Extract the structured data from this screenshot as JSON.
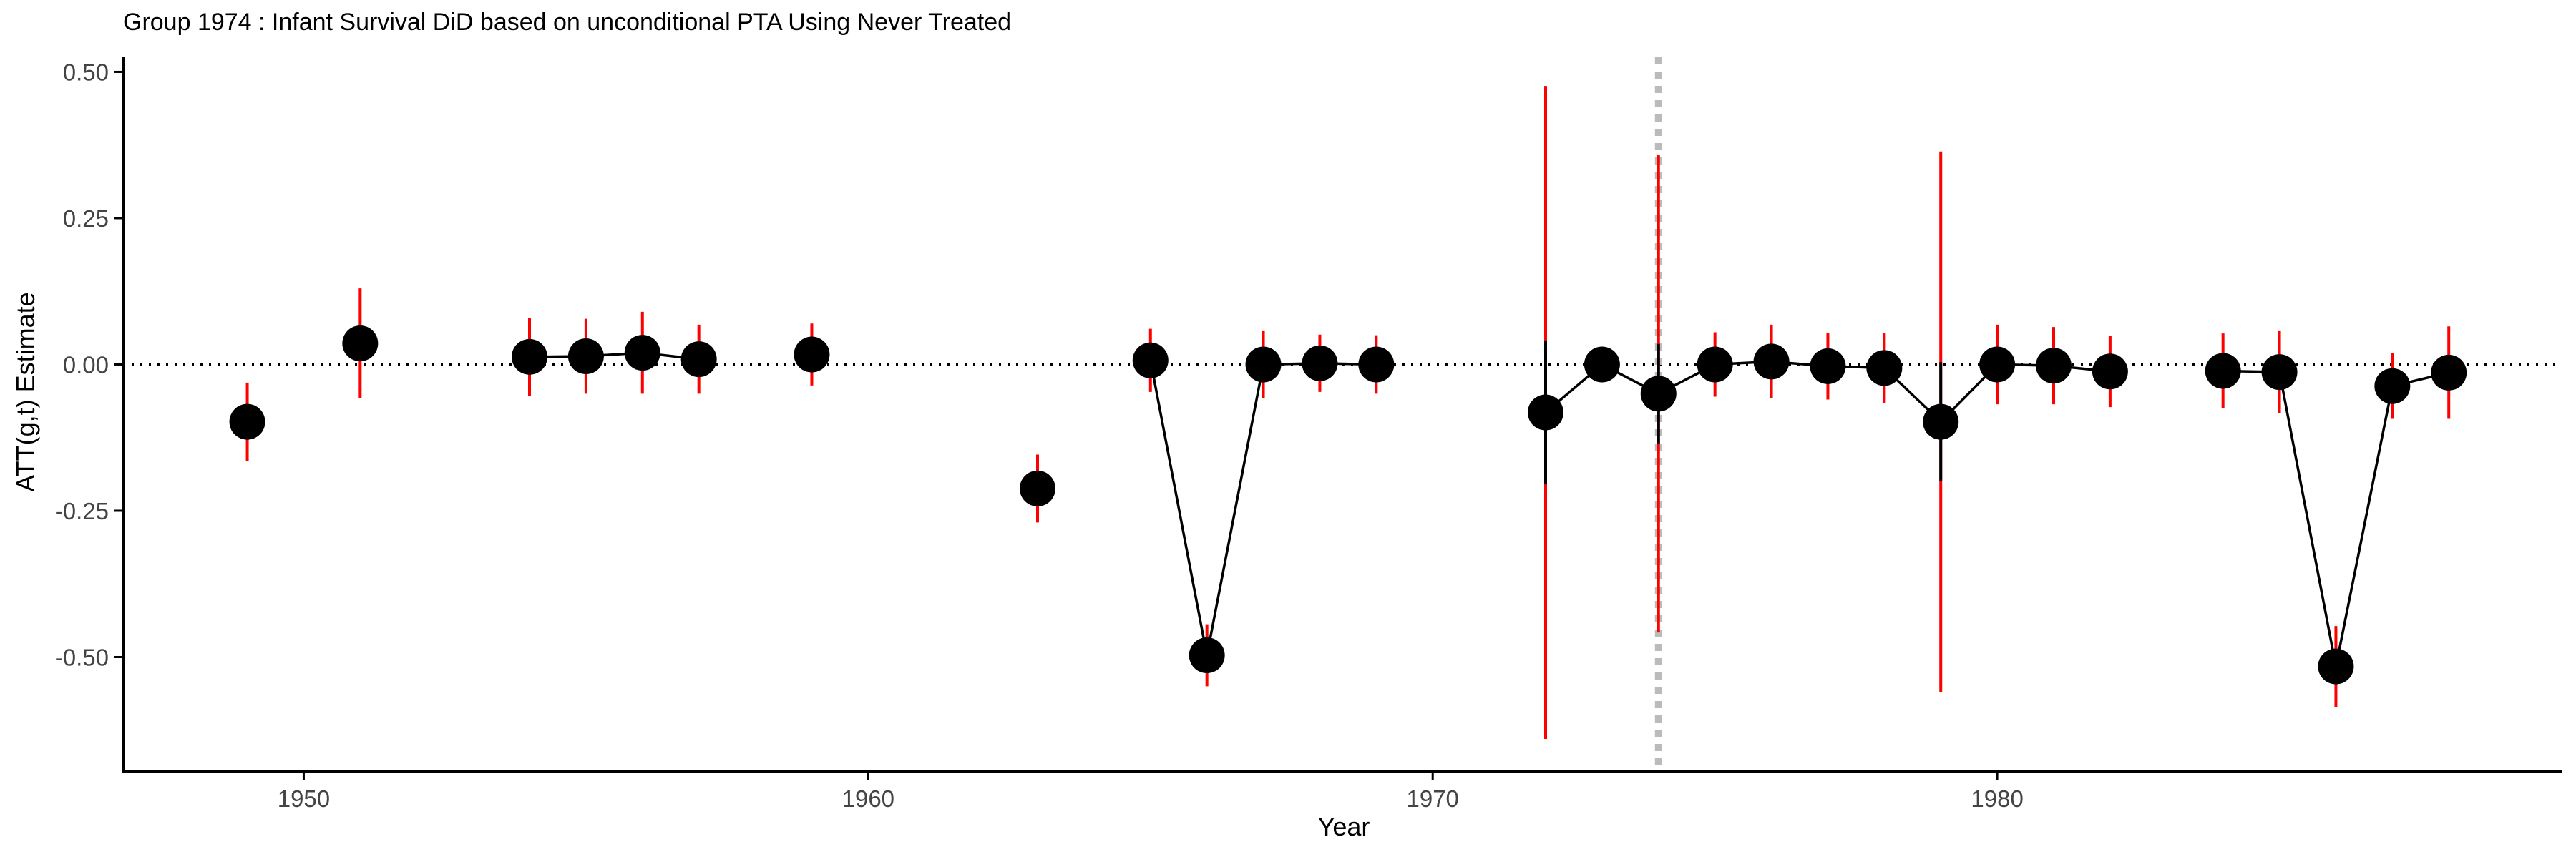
{
  "chart_data": {
    "type": "scatter",
    "title": "Group 1974 : Infant Survival DiD based on unconditional PTA Using Never Treated",
    "xlabel": "Year",
    "ylabel": "ATT(g,t) Estimate",
    "xlim": [
      1946.8,
      1990.0
    ],
    "ylim": [
      -0.695,
      0.525
    ],
    "x_ticks": [
      1950,
      1960,
      1970,
      1980
    ],
    "y_ticks": [
      0.5,
      0.25,
      0.0,
      -0.25,
      -0.5
    ],
    "y_tick_labels": [
      "0.50",
      "0.25",
      "0.00",
      "-0.25",
      "-0.50"
    ],
    "reference_hline": 0.0,
    "treatment_vline": 1974,
    "grid": false,
    "colors": {
      "point": "#000000",
      "ci": "#ff0000",
      "vline": "#bbbbbb",
      "axis": "#000000",
      "tick_label": "#444444"
    },
    "points": [
      {
        "x": 1949,
        "y": -0.098,
        "lo": -0.165,
        "hi": -0.031,
        "ci2_lo": null,
        "ci2_hi": null
      },
      {
        "x": 1951,
        "y": 0.036,
        "lo": -0.058,
        "hi": 0.13,
        "ci2_lo": null,
        "ci2_hi": null
      },
      {
        "x": 1954,
        "y": 0.013,
        "lo": -0.054,
        "hi": 0.08,
        "ci2_lo": null,
        "ci2_hi": null
      },
      {
        "x": 1955,
        "y": 0.014,
        "lo": -0.05,
        "hi": 0.078,
        "ci2_lo": null,
        "ci2_hi": null
      },
      {
        "x": 1956,
        "y": 0.02,
        "lo": -0.05,
        "hi": 0.09,
        "ci2_lo": null,
        "ci2_hi": null
      },
      {
        "x": 1957,
        "y": 0.009,
        "lo": -0.05,
        "hi": 0.068,
        "ci2_lo": null,
        "ci2_hi": null
      },
      {
        "x": 1959,
        "y": 0.017,
        "lo": -0.036,
        "hi": 0.07,
        "ci2_lo": null,
        "ci2_hi": null
      },
      {
        "x": 1963,
        "y": -0.212,
        "lo": -0.27,
        "hi": -0.154,
        "ci2_lo": null,
        "ci2_hi": null
      },
      {
        "x": 1965,
        "y": 0.007,
        "lo": -0.047,
        "hi": 0.061,
        "ci2_lo": null,
        "ci2_hi": null
      },
      {
        "x": 1966,
        "y": -0.497,
        "lo": -0.55,
        "hi": -0.444,
        "ci2_lo": null,
        "ci2_hi": null
      },
      {
        "x": 1967,
        "y": 0.0,
        "lo": -0.057,
        "hi": 0.057,
        "ci2_lo": null,
        "ci2_hi": null
      },
      {
        "x": 1968,
        "y": 0.002,
        "lo": -0.047,
        "hi": 0.051,
        "ci2_lo": null,
        "ci2_hi": null
      },
      {
        "x": 1969,
        "y": 0.0,
        "lo": -0.05,
        "hi": 0.05,
        "ci2_lo": null,
        "ci2_hi": null
      },
      {
        "x": 1972,
        "y": -0.082,
        "lo": -0.64,
        "hi": 0.476,
        "ci2_lo": -0.205,
        "ci2_hi": 0.041
      },
      {
        "x": 1973,
        "y": 0.0,
        "lo": 0.0,
        "hi": 0.0,
        "ci2_lo": null,
        "ci2_hi": null
      },
      {
        "x": 1974,
        "y": -0.05,
        "lo": -0.458,
        "hi": 0.358,
        "ci2_lo": -0.135,
        "ci2_hi": 0.035
      },
      {
        "x": 1975,
        "y": 0.0,
        "lo": -0.055,
        "hi": 0.055,
        "ci2_lo": null,
        "ci2_hi": null
      },
      {
        "x": 1976,
        "y": 0.005,
        "lo": -0.058,
        "hi": 0.068,
        "ci2_lo": null,
        "ci2_hi": null
      },
      {
        "x": 1977,
        "y": -0.003,
        "lo": -0.06,
        "hi": 0.054,
        "ci2_lo": null,
        "ci2_hi": null
      },
      {
        "x": 1978,
        "y": -0.006,
        "lo": -0.066,
        "hi": 0.054,
        "ci2_lo": null,
        "ci2_hi": null
      },
      {
        "x": 1979,
        "y": -0.098,
        "lo": -0.56,
        "hi": 0.364,
        "ci2_lo": -0.2,
        "ci2_hi": 0.004
      },
      {
        "x": 1980,
        "y": 0.0,
        "lo": -0.068,
        "hi": 0.068,
        "ci2_lo": null,
        "ci2_hi": null
      },
      {
        "x": 1981,
        "y": -0.002,
        "lo": -0.068,
        "hi": 0.064,
        "ci2_lo": null,
        "ci2_hi": null
      },
      {
        "x": 1982,
        "y": -0.012,
        "lo": -0.073,
        "hi": 0.049,
        "ci2_lo": null,
        "ci2_hi": null
      },
      {
        "x": 1984,
        "y": -0.011,
        "lo": -0.075,
        "hi": 0.053,
        "ci2_lo": null,
        "ci2_hi": null
      },
      {
        "x": 1985,
        "y": -0.013,
        "lo": -0.083,
        "hi": 0.057,
        "ci2_lo": null,
        "ci2_hi": null
      },
      {
        "x": 1986,
        "y": -0.516,
        "lo": -0.585,
        "hi": -0.447,
        "ci2_lo": null,
        "ci2_hi": null
      },
      {
        "x": 1987,
        "y": -0.037,
        "lo": -0.093,
        "hi": 0.019,
        "ci2_lo": null,
        "ci2_hi": null
      },
      {
        "x": 1988,
        "y": -0.014,
        "lo": -0.093,
        "hi": 0.065,
        "ci2_lo": null,
        "ci2_hi": null
      }
    ],
    "connected_segments": [
      [
        1954,
        1955,
        1956,
        1957
      ],
      [
        1965,
        1966,
        1967,
        1968,
        1969
      ],
      [
        1972,
        1973,
        1974,
        1975,
        1976,
        1977,
        1978,
        1979,
        1980,
        1981,
        1982
      ],
      [
        1984,
        1985,
        1986,
        1987,
        1988
      ]
    ]
  }
}
